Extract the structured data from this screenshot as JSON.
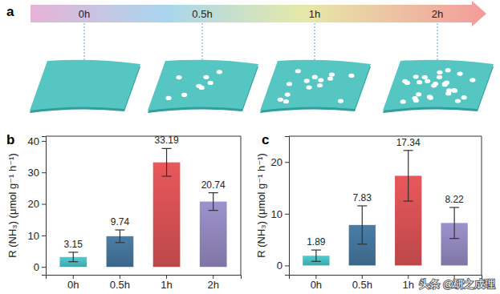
{
  "diagram": {
    "label": "a",
    "timeline": [
      "0h",
      "0.5h",
      "1h",
      "2h"
    ]
  },
  "watermark": "头条 @研之成理",
  "chart_data": [
    {
      "type": "bar",
      "annotations": [
        "b"
      ],
      "y_label": "R (NH₃) (μmol g⁻¹ h⁻¹)",
      "categories": [
        "0h",
        "0.5h",
        "1h",
        "2h"
      ],
      "values": [
        3.15,
        9.74,
        33.19,
        20.74
      ],
      "errors": [
        1.5,
        2.0,
        4.4,
        2.8
      ],
      "colors": [
        "#4fcdd3",
        "#4a7ea8",
        "#e9585b",
        "#9d92cc"
      ],
      "ylim": [
        -2.5,
        41.5
      ],
      "yticks": [
        0,
        10,
        20,
        30,
        40
      ],
      "data_labels": true
    },
    {
      "type": "bar",
      "annotations": [
        "c"
      ],
      "y_label": "R (NH₃) (μmol g⁻¹ h⁻¹)",
      "categories": [
        "0h",
        "0.5h",
        "1h",
        "2h"
      ],
      "values": [
        1.89,
        7.83,
        17.34,
        8.22
      ],
      "errors": [
        1.1,
        3.7,
        4.9,
        3.0
      ],
      "colors": [
        "#4fcdd3",
        "#4a7ea8",
        "#e9585b",
        "#9d92cc"
      ],
      "ylim": [
        -1.8,
        25
      ],
      "yticks": [
        0,
        10,
        20
      ],
      "data_labels": true
    }
  ]
}
